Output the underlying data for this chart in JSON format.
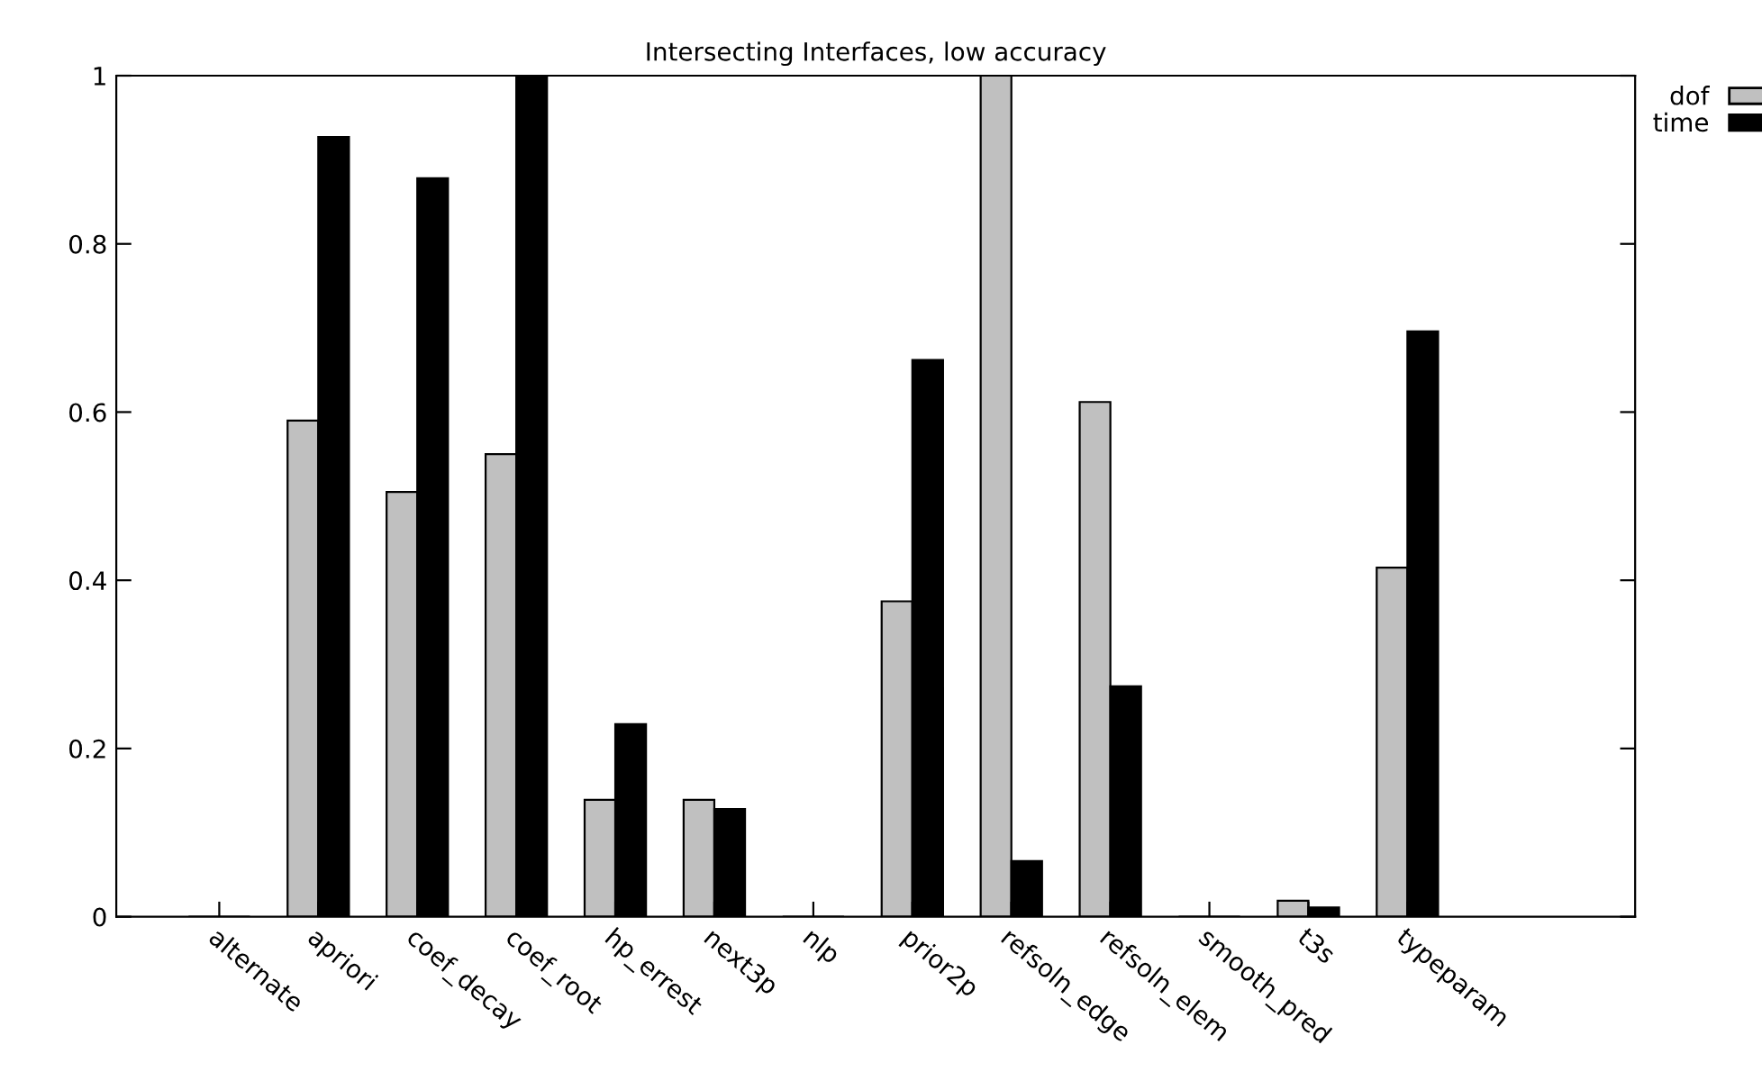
{
  "chart_data": {
    "type": "bar",
    "title": "Intersecting Interfaces, low accuracy",
    "categories": [
      "alternate",
      "apriori",
      "coef_decay",
      "coef_root",
      "hp_errest",
      "next3p",
      "nlp",
      "prior2p",
      "refsoln_edge",
      "refsoln_elem",
      "smooth_pred",
      "t3s",
      "typeparam"
    ],
    "series": [
      {
        "name": "dof",
        "color": "#c0c0c0",
        "values": [
          0,
          0.59,
          0.505,
          0.55,
          0.139,
          0.139,
          0,
          0.375,
          1,
          0.612,
          0,
          0.019,
          0.415
        ]
      },
      {
        "name": "time",
        "color": "#000000",
        "values": [
          0,
          0.927,
          0.878,
          1,
          0.229,
          0.128,
          0,
          0.662,
          0.066,
          0.274,
          0,
          0.011,
          0.696
        ]
      }
    ],
    "ylim": [
      0,
      1
    ],
    "yticks": [
      0,
      0.2,
      0.4,
      0.6,
      0.8,
      1
    ],
    "grid": false,
    "legend": "top right"
  }
}
